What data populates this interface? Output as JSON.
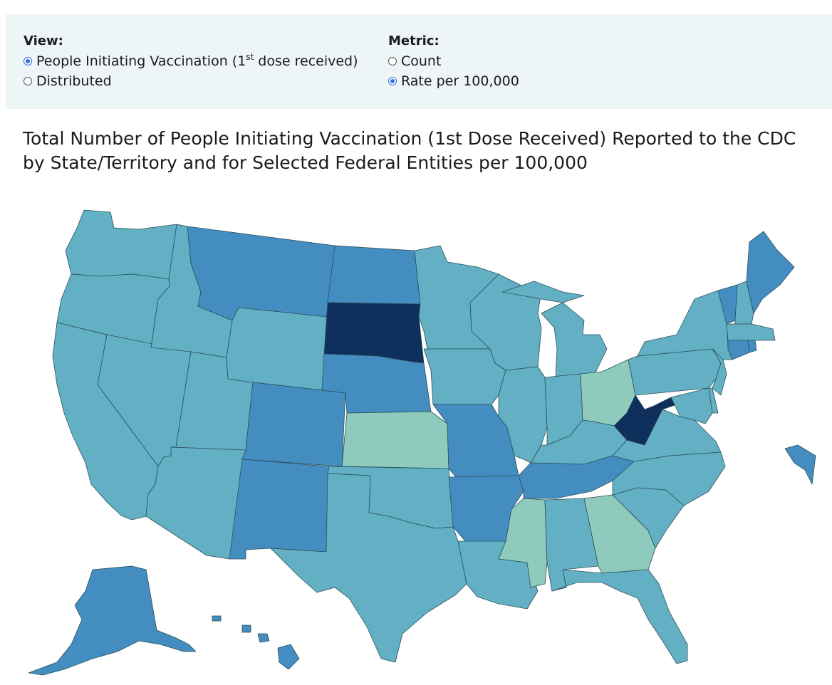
{
  "controls": {
    "view": {
      "title": "View:",
      "options": [
        {
          "label": "People Initiating Vaccination (1",
          "sup": "st",
          "suffix": " dose received)",
          "checked": true
        },
        {
          "label": "Distributed",
          "checked": false
        }
      ]
    },
    "metric": {
      "title": "Metric:",
      "options": [
        {
          "label": "Count",
          "checked": false
        },
        {
          "label": "Rate per 100,000",
          "checked": true
        }
      ]
    }
  },
  "title": "Total Number of People Initiating Vaccination (1st Dose Received) Reported to the CDC by State/Territory and for Selected Federal Entities per 100,000",
  "color_classes": {
    "lowest": "#8ecbbc",
    "low": "#63b0c4",
    "high": "#448dc0",
    "highest": "#0f2f5c"
  },
  "map_data": {
    "states": [
      {
        "abbr": "WA",
        "class": "low"
      },
      {
        "abbr": "OR",
        "class": "low"
      },
      {
        "abbr": "CA",
        "class": "low"
      },
      {
        "abbr": "NV",
        "class": "low"
      },
      {
        "abbr": "ID",
        "class": "low"
      },
      {
        "abbr": "UT",
        "class": "low"
      },
      {
        "abbr": "AZ",
        "class": "low"
      },
      {
        "abbr": "MT",
        "class": "high"
      },
      {
        "abbr": "WY",
        "class": "low"
      },
      {
        "abbr": "CO",
        "class": "high"
      },
      {
        "abbr": "NM",
        "class": "high"
      },
      {
        "abbr": "ND",
        "class": "high"
      },
      {
        "abbr": "SD",
        "class": "highest"
      },
      {
        "abbr": "NE",
        "class": "high"
      },
      {
        "abbr": "KS",
        "class": "lowest"
      },
      {
        "abbr": "OK",
        "class": "low"
      },
      {
        "abbr": "TX",
        "class": "low"
      },
      {
        "abbr": "MN",
        "class": "low"
      },
      {
        "abbr": "IA",
        "class": "low"
      },
      {
        "abbr": "MO",
        "class": "high"
      },
      {
        "abbr": "AR",
        "class": "high"
      },
      {
        "abbr": "LA",
        "class": "low"
      },
      {
        "abbr": "WI",
        "class": "low"
      },
      {
        "abbr": "IL",
        "class": "low"
      },
      {
        "abbr": "MI",
        "class": "low"
      },
      {
        "abbr": "IN",
        "class": "low"
      },
      {
        "abbr": "OH",
        "class": "lowest"
      },
      {
        "abbr": "KY",
        "class": "low"
      },
      {
        "abbr": "TN",
        "class": "high"
      },
      {
        "abbr": "MS",
        "class": "lowest"
      },
      {
        "abbr": "AL",
        "class": "low"
      },
      {
        "abbr": "GA",
        "class": "lowest"
      },
      {
        "abbr": "FL",
        "class": "low"
      },
      {
        "abbr": "SC",
        "class": "low"
      },
      {
        "abbr": "NC",
        "class": "low"
      },
      {
        "abbr": "VA",
        "class": "low"
      },
      {
        "abbr": "WV",
        "class": "highest"
      },
      {
        "abbr": "PA",
        "class": "low"
      },
      {
        "abbr": "NY",
        "class": "low"
      },
      {
        "abbr": "VT",
        "class": "high"
      },
      {
        "abbr": "NH",
        "class": "low"
      },
      {
        "abbr": "ME",
        "class": "high"
      },
      {
        "abbr": "MA",
        "class": "low"
      },
      {
        "abbr": "CT",
        "class": "high"
      },
      {
        "abbr": "RI",
        "class": "high"
      },
      {
        "abbr": "NJ",
        "class": "low"
      },
      {
        "abbr": "DE",
        "class": "low"
      },
      {
        "abbr": "MD",
        "class": "low"
      },
      {
        "abbr": "AK",
        "class": "high"
      },
      {
        "abbr": "HI",
        "class": "high"
      },
      {
        "abbr": "PR",
        "class": "high"
      }
    ]
  }
}
